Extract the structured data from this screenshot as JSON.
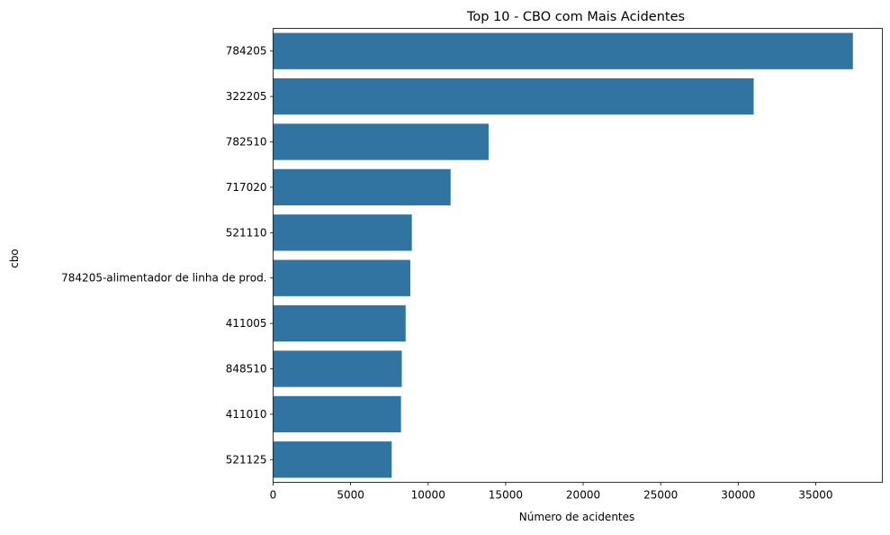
{
  "chart_data": {
    "type": "bar",
    "orientation": "horizontal",
    "title": "Top 10 - CBO com Mais Acidentes",
    "xlabel": "Número de acidentes",
    "ylabel": "cbo",
    "categories": [
      "784205",
      "322205",
      "782510",
      "717020",
      "521110",
      "784205-alimentador de linha de prod.",
      "411005",
      "848510",
      "411010",
      "521125"
    ],
    "values": [
      37400,
      31000,
      13900,
      11450,
      8950,
      8850,
      8550,
      8300,
      8250,
      7650
    ],
    "xlim": [
      0,
      39300
    ],
    "xticks": [
      0,
      5000,
      10000,
      15000,
      20000,
      25000,
      30000,
      35000
    ],
    "grid": false,
    "bar_color": "#3274a1"
  }
}
